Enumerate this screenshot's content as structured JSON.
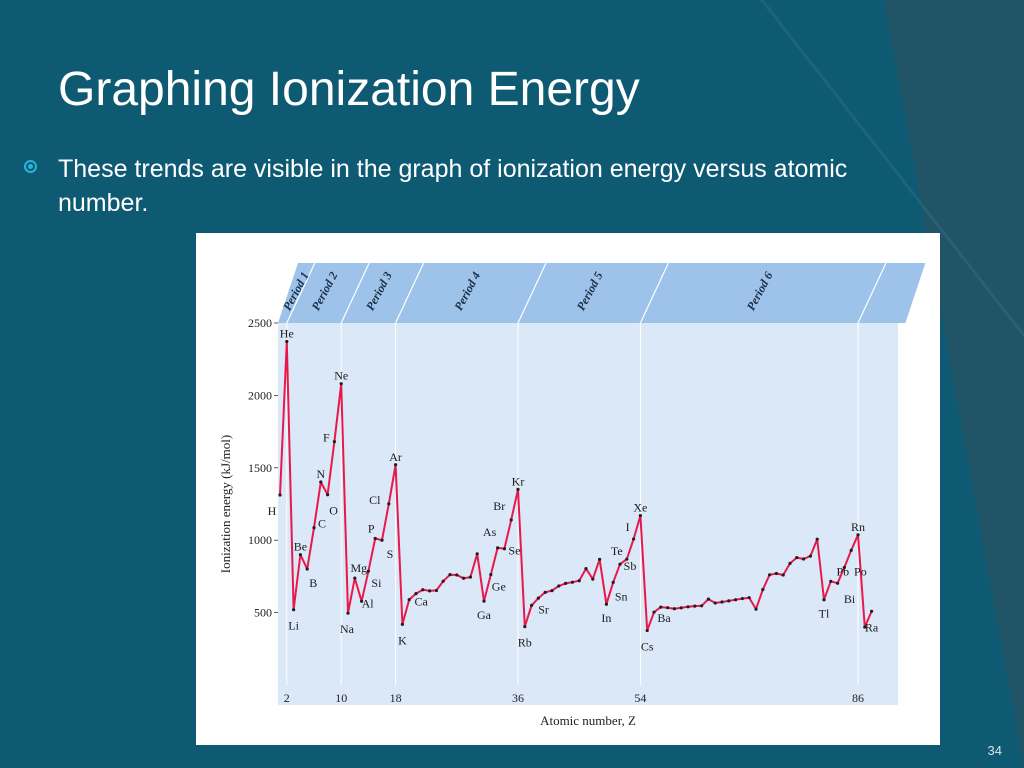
{
  "slide": {
    "title": "Graphing Ionization Energy",
    "bullet": "These trends are visible in the graph of ionization energy versus atomic number.",
    "page_number": "34",
    "colors": {
      "background": "#0e5a73",
      "bullet": "#2ab3d8",
      "plot_bg": "#dbe8f7",
      "band": "#9ec3ea",
      "line": "#e8194a"
    }
  },
  "chart_data": {
    "type": "line",
    "xlabel": "Atomic number, Z",
    "ylabel": "Ionization energy (kJ/mol)",
    "xlim": [
      0,
      90
    ],
    "ylim": [
      0,
      2500
    ],
    "y_ticks": [
      500,
      1000,
      1500,
      2000,
      2500
    ],
    "x_ticks": [
      2,
      10,
      18,
      36,
      54,
      86
    ],
    "period_labels": [
      "Period 1",
      "Period 2",
      "Period 3",
      "Period 4",
      "Period 5",
      "Period 6"
    ],
    "period_boundaries": [
      2,
      10,
      18,
      36,
      54,
      86
    ],
    "series": [
      {
        "x": [
          1,
          2,
          3,
          4,
          5,
          6,
          7,
          8,
          9,
          10,
          11,
          12,
          13,
          14,
          15,
          16,
          17,
          18,
          19,
          20,
          21,
          22,
          23,
          24,
          25,
          26,
          27,
          28,
          29,
          30,
          31,
          32,
          33,
          34,
          35,
          36,
          37,
          38,
          39,
          40,
          41,
          42,
          43,
          44,
          45,
          46,
          47,
          48,
          49,
          50,
          51,
          52,
          53,
          54,
          55,
          56,
          57,
          58,
          59,
          60,
          61,
          62,
          63,
          64,
          65,
          66,
          67,
          68,
          69,
          70,
          71,
          72,
          73,
          74,
          75,
          76,
          77,
          78,
          79,
          80,
          81,
          82,
          83,
          84,
          85,
          86,
          87,
          88
        ],
        "y": [
          1312,
          2372,
          520,
          900,
          801,
          1086,
          1402,
          1314,
          1681,
          2081,
          496,
          738,
          578,
          786,
          1012,
          1000,
          1251,
          1521,
          419,
          590,
          631,
          658,
          650,
          653,
          717,
          762,
          760,
          737,
          745,
          906,
          579,
          762,
          947,
          941,
          1140,
          1351,
          403,
          550,
          600,
          640,
          652,
          684,
          702,
          710,
          720,
          804,
          731,
          868,
          558,
          709,
          834,
          869,
          1008,
          1170,
          376,
          503,
          538,
          534,
          527,
          533,
          540,
          545,
          547,
          593,
          566,
          573,
          581,
          589,
          597,
          603,
          524,
          659,
          761,
          770,
          760,
          840,
          880,
          870,
          890,
          1007,
          589,
          716,
          703,
          812,
          930,
          1037,
          400,
          509
        ]
      }
    ],
    "element_labels": [
      {
        "symbol": "H",
        "z": 1
      },
      {
        "symbol": "He",
        "z": 2
      },
      {
        "symbol": "Li",
        "z": 3
      },
      {
        "symbol": "Be",
        "z": 4
      },
      {
        "symbol": "B",
        "z": 5
      },
      {
        "symbol": "C",
        "z": 6
      },
      {
        "symbol": "N",
        "z": 7
      },
      {
        "symbol": "O",
        "z": 8
      },
      {
        "symbol": "F",
        "z": 9
      },
      {
        "symbol": "Ne",
        "z": 10
      },
      {
        "symbol": "Na",
        "z": 11
      },
      {
        "symbol": "Mg",
        "z": 12
      },
      {
        "symbol": "Al",
        "z": 13
      },
      {
        "symbol": "Si",
        "z": 14
      },
      {
        "symbol": "P",
        "z": 15
      },
      {
        "symbol": "S",
        "z": 16
      },
      {
        "symbol": "Cl",
        "z": 17
      },
      {
        "symbol": "Ar",
        "z": 18
      },
      {
        "symbol": "K",
        "z": 19
      },
      {
        "symbol": "Ca",
        "z": 20
      },
      {
        "symbol": "Ga",
        "z": 31
      },
      {
        "symbol": "Ge",
        "z": 32
      },
      {
        "symbol": "As",
        "z": 33
      },
      {
        "symbol": "Se",
        "z": 34
      },
      {
        "symbol": "Br",
        "z": 35
      },
      {
        "symbol": "Kr",
        "z": 36
      },
      {
        "symbol": "Rb",
        "z": 37
      },
      {
        "symbol": "Sr",
        "z": 38
      },
      {
        "symbol": "In",
        "z": 49
      },
      {
        "symbol": "Sn",
        "z": 50
      },
      {
        "symbol": "Sb",
        "z": 51
      },
      {
        "symbol": "Te",
        "z": 52
      },
      {
        "symbol": "I",
        "z": 53
      },
      {
        "symbol": "Xe",
        "z": 54
      },
      {
        "symbol": "Cs",
        "z": 55
      },
      {
        "symbol": "Ba",
        "z": 56
      },
      {
        "symbol": "Tl",
        "z": 81
      },
      {
        "symbol": "Pb",
        "z": 82
      },
      {
        "symbol": "Bi",
        "z": 83
      },
      {
        "symbol": "Po",
        "z": 84
      },
      {
        "symbol": "Rn",
        "z": 86
      },
      {
        "symbol": "Ra",
        "z": 88
      }
    ]
  }
}
